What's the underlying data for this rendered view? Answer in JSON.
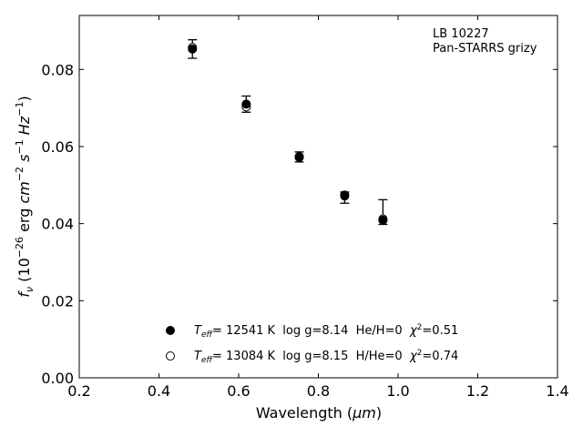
{
  "chart_data": {
    "type": "scatter",
    "xlabel_text": "Wavelength (",
    "xlabel_unit": "μm",
    "xlabel_close": ")",
    "ylabel": {
      "f": "f",
      "nu": "ν",
      "open": " (10",
      "exp1": "−26",
      "mid1": " erg ",
      "cm": "cm",
      "exp2": "−2",
      "s": "s",
      "exp3": "−1",
      "hz": "Hz",
      "exp4": "−1",
      "close": ")"
    },
    "xlim": [
      0.2,
      1.4
    ],
    "ylim": [
      0.0,
      0.094
    ],
    "xticks": [
      "0.2",
      "0.4",
      "0.6",
      "0.8",
      "1.0",
      "1.2",
      "1.4"
    ],
    "yticks": [
      "0.00",
      "0.02",
      "0.04",
      "0.06",
      "0.08"
    ],
    "annotation": [
      "LB 10227",
      "Pan-STARRS grizy"
    ],
    "observed": [
      {
        "x": 0.484,
        "y": 0.0853,
        "ylo": 0.0829,
        "yhi": 0.0877
      },
      {
        "x": 0.619,
        "y": 0.071,
        "ylo": 0.0689,
        "yhi": 0.0731
      },
      {
        "x": 0.752,
        "y": 0.0573,
        "ylo": 0.056,
        "yhi": 0.0586
      },
      {
        "x": 0.866,
        "y": 0.0472,
        "ylo": 0.0453,
        "yhi": 0.0482
      },
      {
        "x": 0.962,
        "y": 0.041,
        "ylo": 0.0398,
        "yhi": 0.0462
      }
    ],
    "series": [
      {
        "marker": "filled",
        "x": [
          0.484,
          0.619,
          0.752,
          0.866,
          0.962
        ],
        "y": [
          0.0853,
          0.071,
          0.0572,
          0.0472,
          0.0409
        ]
      },
      {
        "marker": "open",
        "x": [
          0.484,
          0.619,
          0.752,
          0.866,
          0.962
        ],
        "y": [
          0.0857,
          0.0703,
          0.0574,
          0.0474,
          0.0412
        ]
      }
    ],
    "legend": [
      {
        "T": "T",
        "eff": "eff",
        "text": "= 12541 K  log g=8.14  He/H=0  ",
        "chi": "χ",
        "sq": "2",
        "chi_val": "=0.51",
        "marker": "filled"
      },
      {
        "T": "T",
        "eff": "eff",
        "text": "= 13084 K  log g=8.15  H/He=0  ",
        "chi": "χ",
        "sq": "2",
        "chi_val": "=0.74",
        "marker": "open"
      }
    ],
    "legend_position": "lower-center",
    "grid": false
  }
}
